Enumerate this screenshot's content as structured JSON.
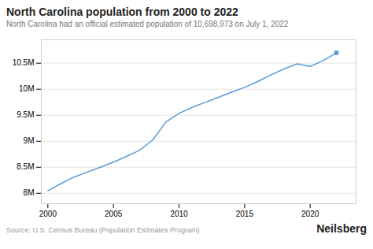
{
  "chart_data": {
    "type": "line",
    "title": "North Carolina population from 2000 to 2022",
    "subtitle": "North Carolina had an official estimated population of 10,698,973 on July 1, 2022",
    "source": "Source: U.S. Census Bureau (Population Estimates Program)",
    "brand": "Neilsberg",
    "x": [
      2000,
      2001,
      2002,
      2003,
      2004,
      2005,
      2006,
      2007,
      2008,
      2009,
      2010,
      2011,
      2012,
      2013,
      2014,
      2015,
      2016,
      2017,
      2018,
      2019,
      2020,
      2021,
      2022
    ],
    "values": [
      8049313,
      8186268,
      8312025,
      8407248,
      8501369,
      8598750,
      8708928,
      8827011,
      9027164,
      9369606,
      9535692,
      9651194,
      9748364,
      9843336,
      9943964,
      10035186,
      10146788,
      10273419,
      10390177,
      10488084,
      10439388,
      10551162,
      10698973
    ],
    "color": "#5b9bd5",
    "marker": "last",
    "xlim": [
      1999.5,
      2023.5
    ],
    "xticks": [
      2000,
      2005,
      2010,
      2015,
      2020
    ],
    "ylim": [
      7800000,
      10950000
    ],
    "yticks": [
      {
        "value": 8000000,
        "label": "8M"
      },
      {
        "value": 8500000,
        "label": "8.5M"
      },
      {
        "value": 9000000,
        "label": "9M"
      },
      {
        "value": 9500000,
        "label": "9.5M"
      },
      {
        "value": 10000000,
        "label": "10M"
      },
      {
        "value": 10500000,
        "label": "10.5M"
      }
    ],
    "grid": true
  }
}
